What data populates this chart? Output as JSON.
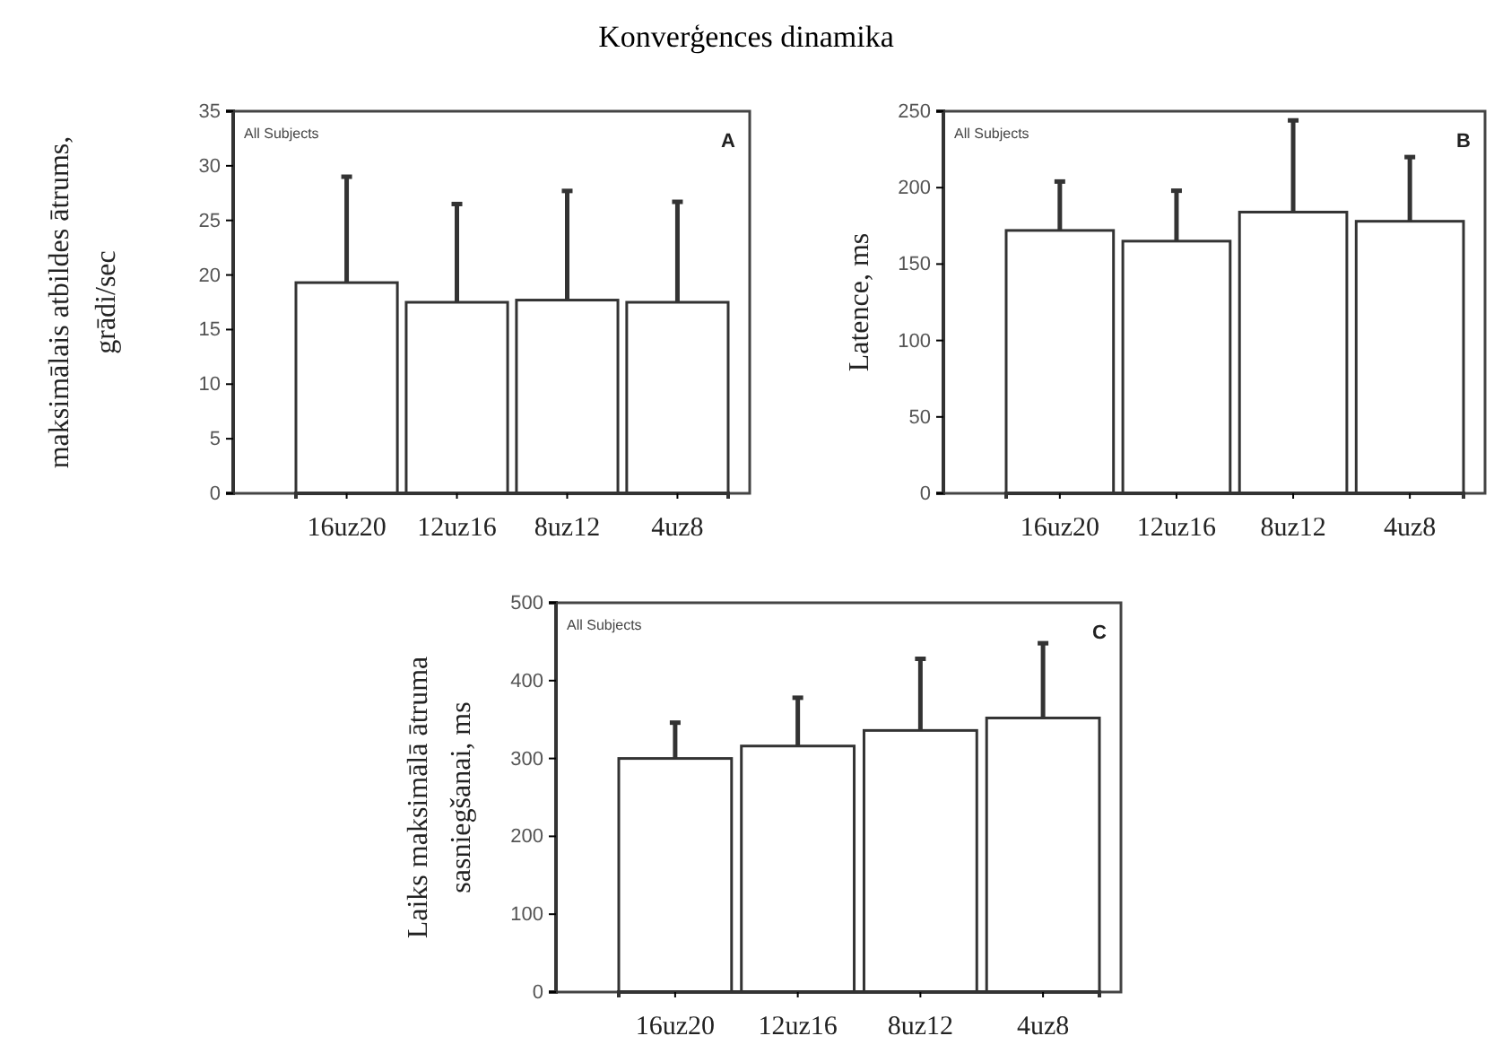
{
  "chart_data": [
    {
      "type": "bar",
      "title": "Konverģences dinamika",
      "ylabel": "maksimālais atbildes ātrums,\ngrādi/sec",
      "categories": [
        "16uz20",
        "12uz16",
        "8uz12",
        "4uz8"
      ],
      "values": [
        19.3,
        17.5,
        17.7,
        17.5
      ],
      "errors": [
        [
          19.3,
          29
        ],
        [
          17.5,
          26.5
        ],
        [
          17.7,
          27.7
        ],
        [
          17.5,
          26.7
        ]
      ],
      "color": "#ffffff",
      "ylim": [
        0,
        35
      ],
      "yticks": [
        0,
        5,
        10,
        15,
        20,
        25,
        30,
        35
      ],
      "annotations": [
        "All Subjects",
        "A"
      ]
    },
    {
      "type": "bar",
      "ylabel": "Latence, ms",
      "categories": [
        "16uz20",
        "12uz16",
        "8uz12",
        "4uz8"
      ],
      "values": [
        172,
        165,
        184,
        178
      ],
      "errors": [
        [
          172,
          204
        ],
        [
          165,
          198
        ],
        [
          184,
          244
        ],
        [
          178,
          220
        ]
      ],
      "color": "#ffffff",
      "ylim": [
        0,
        250
      ],
      "yticks": [
        0,
        50,
        100,
        150,
        200,
        250
      ],
      "annotations": [
        "All Subjects",
        "B"
      ]
    },
    {
      "type": "bar",
      "ylabel": "Laiks maksimālā ātruma\nsasniegšanai, ms",
      "categories": [
        "16uz20",
        "12uz16",
        "8uz12",
        "4uz8"
      ],
      "values": [
        300,
        316,
        336,
        352
      ],
      "errors": [
        [
          300,
          346
        ],
        [
          316,
          378
        ],
        [
          336,
          428
        ],
        [
          352,
          448
        ]
      ],
      "color": "#ffffff",
      "ylim": [
        0,
        500
      ],
      "yticks": [
        0,
        100,
        200,
        300,
        400,
        500
      ],
      "annotations": [
        "All Subjects",
        "C"
      ]
    }
  ]
}
